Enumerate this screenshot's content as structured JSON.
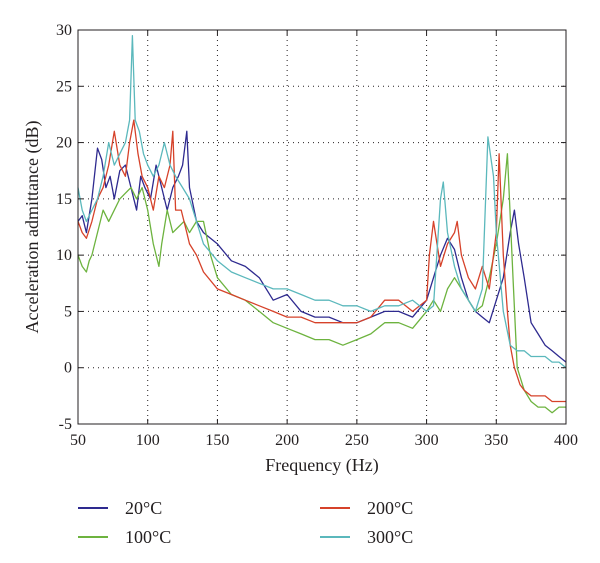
{
  "chart_data": {
    "type": "line",
    "title": "",
    "xlabel": "Frequency (Hz)",
    "ylabel": "Acceleration admittance (dB)",
    "xlim": [
      50,
      400
    ],
    "ylim": [
      -5,
      30
    ],
    "xticks": [
      50,
      100,
      150,
      200,
      250,
      300,
      350,
      400
    ],
    "yticks": [
      -5,
      0,
      5,
      10,
      15,
      20,
      25,
      30
    ],
    "grid": true,
    "legend_position": "below",
    "series": [
      {
        "name": "20°C",
        "color": "#2e2a8f",
        "x": [
          50,
          53,
          56,
          60,
          64,
          67,
          70,
          73,
          76,
          80,
          84,
          88,
          92,
          95,
          98,
          102,
          106,
          110,
          114,
          118,
          122,
          125,
          128,
          130,
          135,
          140,
          150,
          160,
          170,
          180,
          190,
          200,
          210,
          220,
          230,
          240,
          250,
          260,
          270,
          280,
          290,
          300,
          305,
          310,
          315,
          320,
          325,
          330,
          335,
          340,
          345,
          350,
          355,
          360,
          363,
          366,
          370,
          375,
          380,
          385,
          390,
          395,
          400
        ],
        "y": [
          13,
          13.5,
          12,
          15,
          19.5,
          18.5,
          16,
          17,
          15,
          17.5,
          18,
          16,
          14,
          17,
          16,
          15,
          18,
          16,
          14,
          16,
          17,
          18,
          21,
          16,
          13,
          12,
          11,
          9.5,
          9,
          8,
          6,
          6.5,
          5,
          4.5,
          4.5,
          4,
          4,
          4.5,
          5,
          5,
          4.5,
          6,
          8,
          10,
          11.5,
          10.5,
          8,
          6,
          5,
          4.5,
          4,
          6,
          8,
          12,
          14,
          11,
          8,
          4,
          3,
          2,
          1.5,
          1,
          0.5
        ]
      },
      {
        "name": "100°C",
        "color": "#6db33f",
        "x": [
          50,
          53,
          56,
          58,
          60,
          64,
          68,
          72,
          76,
          80,
          84,
          88,
          92,
          96,
          100,
          104,
          108,
          110,
          114,
          118,
          122,
          126,
          130,
          135,
          140,
          145,
          150,
          160,
          170,
          180,
          190,
          200,
          210,
          220,
          230,
          240,
          250,
          260,
          270,
          280,
          290,
          300,
          305,
          310,
          315,
          320,
          325,
          330,
          335,
          340,
          345,
          350,
          355,
          358,
          362,
          365,
          370,
          375,
          380,
          385,
          390,
          395,
          400
        ],
        "y": [
          10,
          9,
          8.5,
          9.5,
          10,
          12,
          14,
          13,
          14,
          15,
          15.5,
          16,
          15,
          16,
          14,
          11,
          9,
          11,
          14,
          12,
          12.5,
          13,
          12,
          13,
          13,
          10,
          8,
          6.5,
          6,
          5,
          4,
          3.5,
          3,
          2.5,
          2.5,
          2,
          2.5,
          3,
          4,
          4,
          3.5,
          5,
          6,
          5,
          7,
          8,
          7,
          6,
          5,
          5.5,
          8,
          11,
          15,
          19,
          8,
          0,
          -2,
          -3,
          -3.5,
          -3.5,
          -4,
          -3.5,
          -3.5
        ]
      },
      {
        "name": "200°C",
        "color": "#d6422a",
        "x": [
          50,
          53,
          56,
          60,
          64,
          68,
          72,
          76,
          80,
          84,
          87,
          90,
          93,
          96,
          100,
          104,
          108,
          112,
          116,
          118,
          120,
          124,
          128,
          130,
          135,
          140,
          150,
          160,
          170,
          180,
          190,
          200,
          210,
          220,
          230,
          240,
          250,
          260,
          270,
          280,
          290,
          300,
          302,
          305,
          310,
          315,
          320,
          322,
          325,
          330,
          335,
          340,
          345,
          350,
          352,
          355,
          358,
          360,
          363,
          367,
          370,
          375,
          380,
          385,
          390,
          395,
          400
        ],
        "y": [
          13,
          12,
          11.5,
          13,
          15,
          16,
          18,
          21,
          18,
          17,
          20,
          22,
          19,
          17,
          16,
          14,
          17,
          16,
          18,
          21,
          14,
          14,
          12,
          11,
          10,
          8.5,
          7,
          6.5,
          6,
          5.5,
          5,
          4.5,
          4.5,
          4,
          4,
          4,
          4,
          4.5,
          6,
          6,
          5,
          6,
          10,
          13,
          9,
          11,
          12,
          13,
          10,
          8,
          7,
          9,
          7,
          12,
          19,
          10,
          5,
          2,
          0,
          -1.5,
          -2,
          -2.5,
          -2.5,
          -2.5,
          -3,
          -3,
          -3
        ]
      },
      {
        "name": "300°C",
        "color": "#5bb8bc",
        "x": [
          50,
          53,
          56,
          60,
          64,
          68,
          72,
          76,
          80,
          84,
          87,
          89,
          91,
          94,
          97,
          100,
          104,
          108,
          112,
          116,
          120,
          125,
          130,
          135,
          140,
          150,
          160,
          170,
          180,
          190,
          200,
          210,
          220,
          230,
          240,
          250,
          260,
          270,
          280,
          290,
          300,
          305,
          310,
          312,
          315,
          320,
          325,
          330,
          335,
          340,
          344,
          348,
          350,
          355,
          360,
          365,
          370,
          375,
          380,
          385,
          390,
          395,
          400
        ],
        "y": [
          16,
          14,
          13,
          14,
          15,
          17,
          20,
          18,
          19,
          20,
          22,
          29.5,
          22,
          21,
          19,
          18,
          17,
          18,
          20,
          18,
          17,
          16,
          15,
          13,
          11,
          9.5,
          8.5,
          8,
          7.5,
          7,
          7,
          6.5,
          6,
          6,
          5.5,
          5.5,
          5,
          5.5,
          5.5,
          6,
          5,
          5.5,
          15,
          16.5,
          12,
          9,
          7,
          6,
          5,
          7,
          20.5,
          17,
          12,
          5,
          2,
          1.5,
          1.5,
          1,
          1,
          1,
          0.5,
          0.5,
          0
        ]
      }
    ]
  }
}
